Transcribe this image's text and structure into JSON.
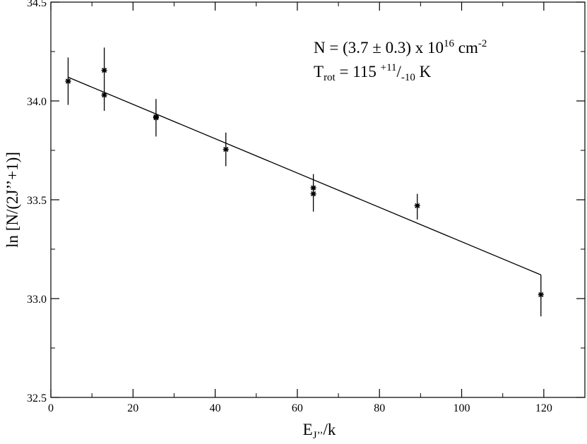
{
  "chart_data": {
    "type": "scatter",
    "title": "",
    "xlabel_main": "E",
    "xlabel_sub": "J’’",
    "xlabel_tail": "/k",
    "ylabel": "ln [N/(2J’’+1)]",
    "xlim": [
      0,
      130
    ],
    "ylim": [
      32.5,
      34.5
    ],
    "x_ticks": [
      0,
      20,
      40,
      60,
      80,
      100,
      120
    ],
    "x_tick_labels": [
      "0",
      "20",
      "40",
      "60",
      "80",
      "100",
      "120"
    ],
    "y_ticks": [
      32.5,
      33.0,
      33.5,
      34.0,
      34.5
    ],
    "y_tick_labels": [
      "32.5",
      "33.0",
      "33.5",
      "34.0",
      "34.5"
    ],
    "x_minor_step": 10,
    "y_minor_step": 0.25,
    "grid": false,
    "legend": "none",
    "points": [
      {
        "x": 4.2,
        "y": 34.1,
        "err_low": 33.98,
        "err_high": 34.22
      },
      {
        "x": 13.0,
        "y": 34.155,
        "err_low": 33.95,
        "err_high": 34.27
      },
      {
        "x": 13.0,
        "y": 34.03,
        "err_low": null,
        "err_high": null
      },
      {
        "x": 25.6,
        "y": 33.92,
        "err_low": 33.82,
        "err_high": 34.01
      },
      {
        "x": 25.6,
        "y": 33.915,
        "err_low": null,
        "err_high": null
      },
      {
        "x": 42.6,
        "y": 33.755,
        "err_low": 33.67,
        "err_high": 33.84
      },
      {
        "x": 63.9,
        "y": 33.56,
        "err_low": 33.44,
        "err_high": 33.63
      },
      {
        "x": 63.9,
        "y": 33.53,
        "err_low": null,
        "err_high": null
      },
      {
        "x": 89.2,
        "y": 33.47,
        "err_low": 33.4,
        "err_high": 33.53
      },
      {
        "x": 119.3,
        "y": 33.02,
        "err_low": 32.91,
        "err_high": 33.12
      }
    ],
    "fit_line": {
      "x": [
        4.2,
        119.3
      ],
      "y": [
        34.12,
        33.12
      ]
    },
    "annotation": {
      "line1": "N = (3.7 ± 0.3) x 10",
      "line1_sup": "16",
      "line1_tail": " cm",
      "line1_sup2": "-2",
      "line2_main": "T",
      "line2_sub": "rot",
      "line2_mid": " = 115 ",
      "line2_sup": "+11",
      "line2_slash": "/",
      "line2_sub2": "-10",
      "line2_tail": " K"
    }
  }
}
